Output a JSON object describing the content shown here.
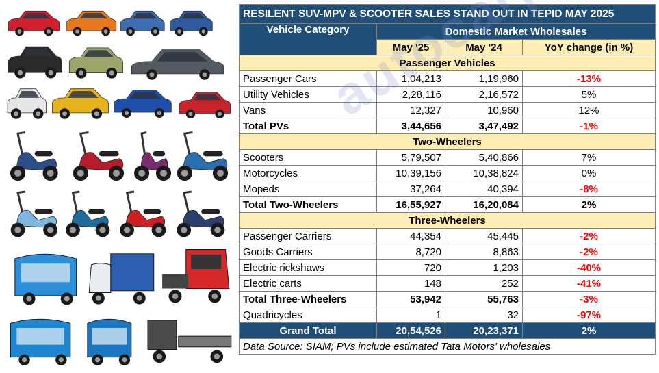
{
  "title": "RESILENT SUV-MPV & SCOOTER SALES STAND OUT IN TEPID MAY 2025",
  "header": {
    "category": "Vehicle Category",
    "group": "Domestic Market Wholesales",
    "col1": "May '25",
    "col2": "May '24",
    "col3": "YoY change (in %)"
  },
  "sections": [
    {
      "name": "Passenger Vehicles",
      "rows": [
        {
          "label": "Passenger Cars",
          "may25": "1,04,213",
          "may24": "1,19,960",
          "yoy": "-13%",
          "neg": true
        },
        {
          "label": "Utility Vehicles",
          "may25": "2,28,116",
          "may24": "2,16,572",
          "yoy": "5%",
          "neg": false
        },
        {
          "label": "Vans",
          "may25": "12,327",
          "may24": "10,960",
          "yoy": "12%",
          "neg": false
        },
        {
          "label": "Total PVs",
          "may25": "3,44,656",
          "may24": "3,47,492",
          "yoy": "-1%",
          "neg": true,
          "total": true
        }
      ]
    },
    {
      "name": "Two-Wheelers",
      "rows": [
        {
          "label": "Scooters",
          "may25": "5,79,507",
          "may24": "5,40,866",
          "yoy": "7%",
          "neg": false
        },
        {
          "label": "Motorcycles",
          "may25": "10,39,156",
          "may24": "10,38,824",
          "yoy": "0%",
          "neg": false
        },
        {
          "label": "Mopeds",
          "may25": "37,264",
          "may24": "40,394",
          "yoy": "-8%",
          "neg": true
        },
        {
          "label": "Total Two-Wheelers",
          "may25": "16,55,927",
          "may24": "16,20,084",
          "yoy": "2%",
          "neg": false,
          "total": true
        }
      ]
    },
    {
      "name": "Three-Wheelers",
      "rows": [
        {
          "label": "Passenger Carriers",
          "may25": "44,354",
          "may24": "45,445",
          "yoy": "-2%",
          "neg": true
        },
        {
          "label": "Goods Carriers",
          "may25": "8,720",
          "may24": "8,863",
          "yoy": "-2%",
          "neg": true
        },
        {
          "label": "Electric rickshaws",
          "may25": "720",
          "may24": "1,203",
          "yoy": "-40%",
          "neg": true
        },
        {
          "label": "Electric carts",
          "may25": "148",
          "may24": "252",
          "yoy": "-41%",
          "neg": true
        },
        {
          "label": "Total Three-Wheelers",
          "may25": "53,942",
          "may24": "55,763",
          "yoy": "-3%",
          "neg": true,
          "total": true
        },
        {
          "label": "Quadricycles",
          "may25": "1",
          "may24": "32",
          "yoy": "-97%",
          "neg": true
        }
      ]
    }
  ],
  "grand_total": {
    "label": "Grand Total",
    "may25": "20,54,526",
    "may24": "20,23,371",
    "yoy": "2%"
  },
  "note": "Data Source: SIAM; PVs include estimated Tata Motors' wholesales",
  "watermark": "autocarpro.in",
  "gallery": [
    {
      "kind": "car",
      "color": "#d21f2e"
    },
    {
      "kind": "car",
      "color": "#e9781c"
    },
    {
      "kind": "car",
      "color": "#3d6eb3"
    },
    {
      "kind": "car",
      "color": "#2f5aa0"
    },
    {
      "kind": "suv",
      "color": "#2a2a2a"
    },
    {
      "kind": "suv",
      "color": "#9aa46b"
    },
    {
      "kind": "sedan",
      "color": "#545a62"
    },
    {
      "kind": "car",
      "color": "#e6e6e6"
    },
    {
      "kind": "suv",
      "color": "#e6b21c"
    },
    {
      "kind": "car",
      "color": "#1f4fa8"
    },
    {
      "kind": "suv",
      "color": "#c9242c"
    },
    {
      "kind": "scooter",
      "color": "#2c4e8a"
    },
    {
      "kind": "scooter",
      "color": "#b61d2a"
    },
    {
      "kind": "scooter",
      "color": "#7a2d6e"
    },
    {
      "kind": "scooter",
      "color": "#2c6fb0"
    },
    {
      "kind": "scooter",
      "color": "#7db7e0"
    },
    {
      "kind": "scooter",
      "color": "#1f6c9c"
    },
    {
      "kind": "scooter",
      "color": "#cc1f24"
    },
    {
      "kind": "scooter",
      "color": "#2a3f6a"
    },
    {
      "kind": "rickshaw",
      "color": "#2d8fd8"
    },
    {
      "kind": "cargo",
      "color": "#2d5fb0"
    },
    {
      "kind": "pickup",
      "color": "#d62828"
    },
    {
      "kind": "rickshaw",
      "color": "#1f86d0"
    },
    {
      "kind": "rickshaw",
      "color": "#1b77c2"
    },
    {
      "kind": "cart",
      "color": "#4a4a4a"
    }
  ]
}
